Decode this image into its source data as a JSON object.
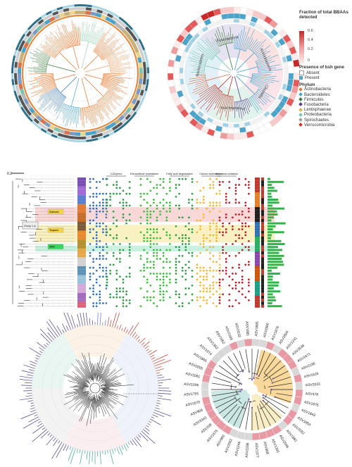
{
  "panel_b_legend": {
    "fraction_title": "Fraction of total BBAAs detected",
    "fraction_ticks": [
      "0.6",
      "0.4",
      "0.2",
      "0"
    ],
    "presence_title": "Presence of bsh gene",
    "presence_items": [
      {
        "label": "Absent",
        "color": "#ffffff"
      },
      {
        "label": "Present",
        "color": "#4aa3c9"
      }
    ],
    "phylum_title": "Phylum",
    "phylum_items": [
      {
        "label": "Actinobacteria",
        "color": "#e07b39"
      },
      {
        "label": "Bacteroidetes",
        "color": "#4aa3c9"
      },
      {
        "label": "Firmicutes",
        "color": "#3c7f3c"
      },
      {
        "label": "Fusobacteria",
        "color": "#5b3b8c"
      },
      {
        "label": "Lentisphaerae",
        "color": "#d9b45a"
      },
      {
        "label": "Proteobacteria",
        "color": "#7bc5b0"
      },
      {
        "label": "Spirochaetes",
        "color": "#a0a0a0"
      },
      {
        "label": "Verrucomicrobia",
        "color": "#c0392b"
      }
    ]
  },
  "panel_b_clade_labels": [
    "Fusobacteria",
    "Bacteroidetes",
    "Proteobacteria",
    "Clostridia",
    "Actinobacteria"
  ],
  "panel_c": {
    "scale_label": "0.2",
    "column_groups": [
      "CAZymes",
      "Extracellular peptidases",
      "Fatty acid degradation",
      "Carbon assimilation",
      "Ammonia oxidation"
    ],
    "group_box": "Group 1 to",
    "highlight_labels": [
      "Subset",
      "Topset",
      "SRC"
    ],
    "highlight_colors": [
      "#f4b6b6",
      "#f6e58d",
      "#9be7c4"
    ]
  },
  "panel_e": {
    "leaf_labels": [
      "ASV1895",
      "ASV2960",
      "ASV1876",
      "ASV2804",
      "ASV1241",
      "ASV3536",
      "ASV1671",
      "ASV2196",
      "ASV1626",
      "ASV2033",
      "ASV478",
      "ASV1875",
      "ASV1843",
      "ASV1853",
      "ASV2052",
      "ASV1881",
      "ASV2046",
      "ASV1392",
      "ASV868",
      "ASV1377",
      "ASV2208",
      "ASV1246",
      "ASV2562",
      "ASV960",
      "ASV1675",
      "ASV208",
      "ASV3343",
      "ASV909",
      "ASV1670",
      "ASV1755",
      "ASV1596",
      "ASV2081",
      "ASV2005",
      "ASV1865",
      "ASV1974",
      "ASV1362",
      "ASV1952",
      "ASV2189",
      "ASV3232",
      "ASV1881"
    ]
  }
}
